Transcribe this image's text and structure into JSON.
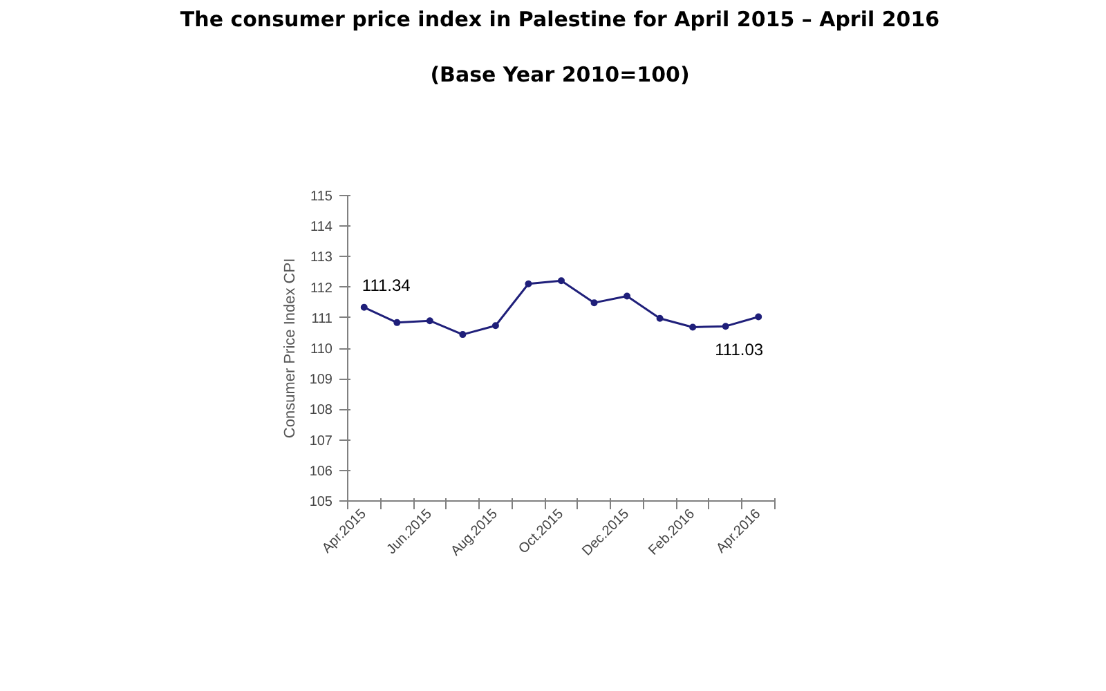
{
  "chart_data": {
    "type": "line",
    "title": "The consumer price index in Palestine for April 2015 – April 2016",
    "subtitle": "(Base Year 2010=100)",
    "ylabel": "Consumer Price Index CPI",
    "categories": [
      "Apr.2015",
      null,
      "Jun.2015",
      null,
      "Aug.2015",
      null,
      "Oct.2015",
      null,
      "Dec.2015",
      null,
      "Feb.2016",
      null,
      "Apr.2016"
    ],
    "series": [
      {
        "color": "#1f1f7a",
        "values": [
          111.34,
          110.84,
          110.9,
          110.45,
          110.74,
          112.11,
          112.21,
          111.49,
          111.71,
          110.98,
          110.69,
          110.72,
          111.03
        ],
        "value_labels": [
          "111.34",
          null,
          null,
          null,
          null,
          null,
          null,
          null,
          null,
          null,
          null,
          null,
          "111.03"
        ]
      }
    ],
    "ylim": [
      105,
      115
    ],
    "yticks": [
      105,
      106,
      107,
      108,
      109,
      110,
      111,
      112,
      113,
      114,
      115
    ],
    "grid": false,
    "marker": "circle",
    "line_style": "solid"
  }
}
